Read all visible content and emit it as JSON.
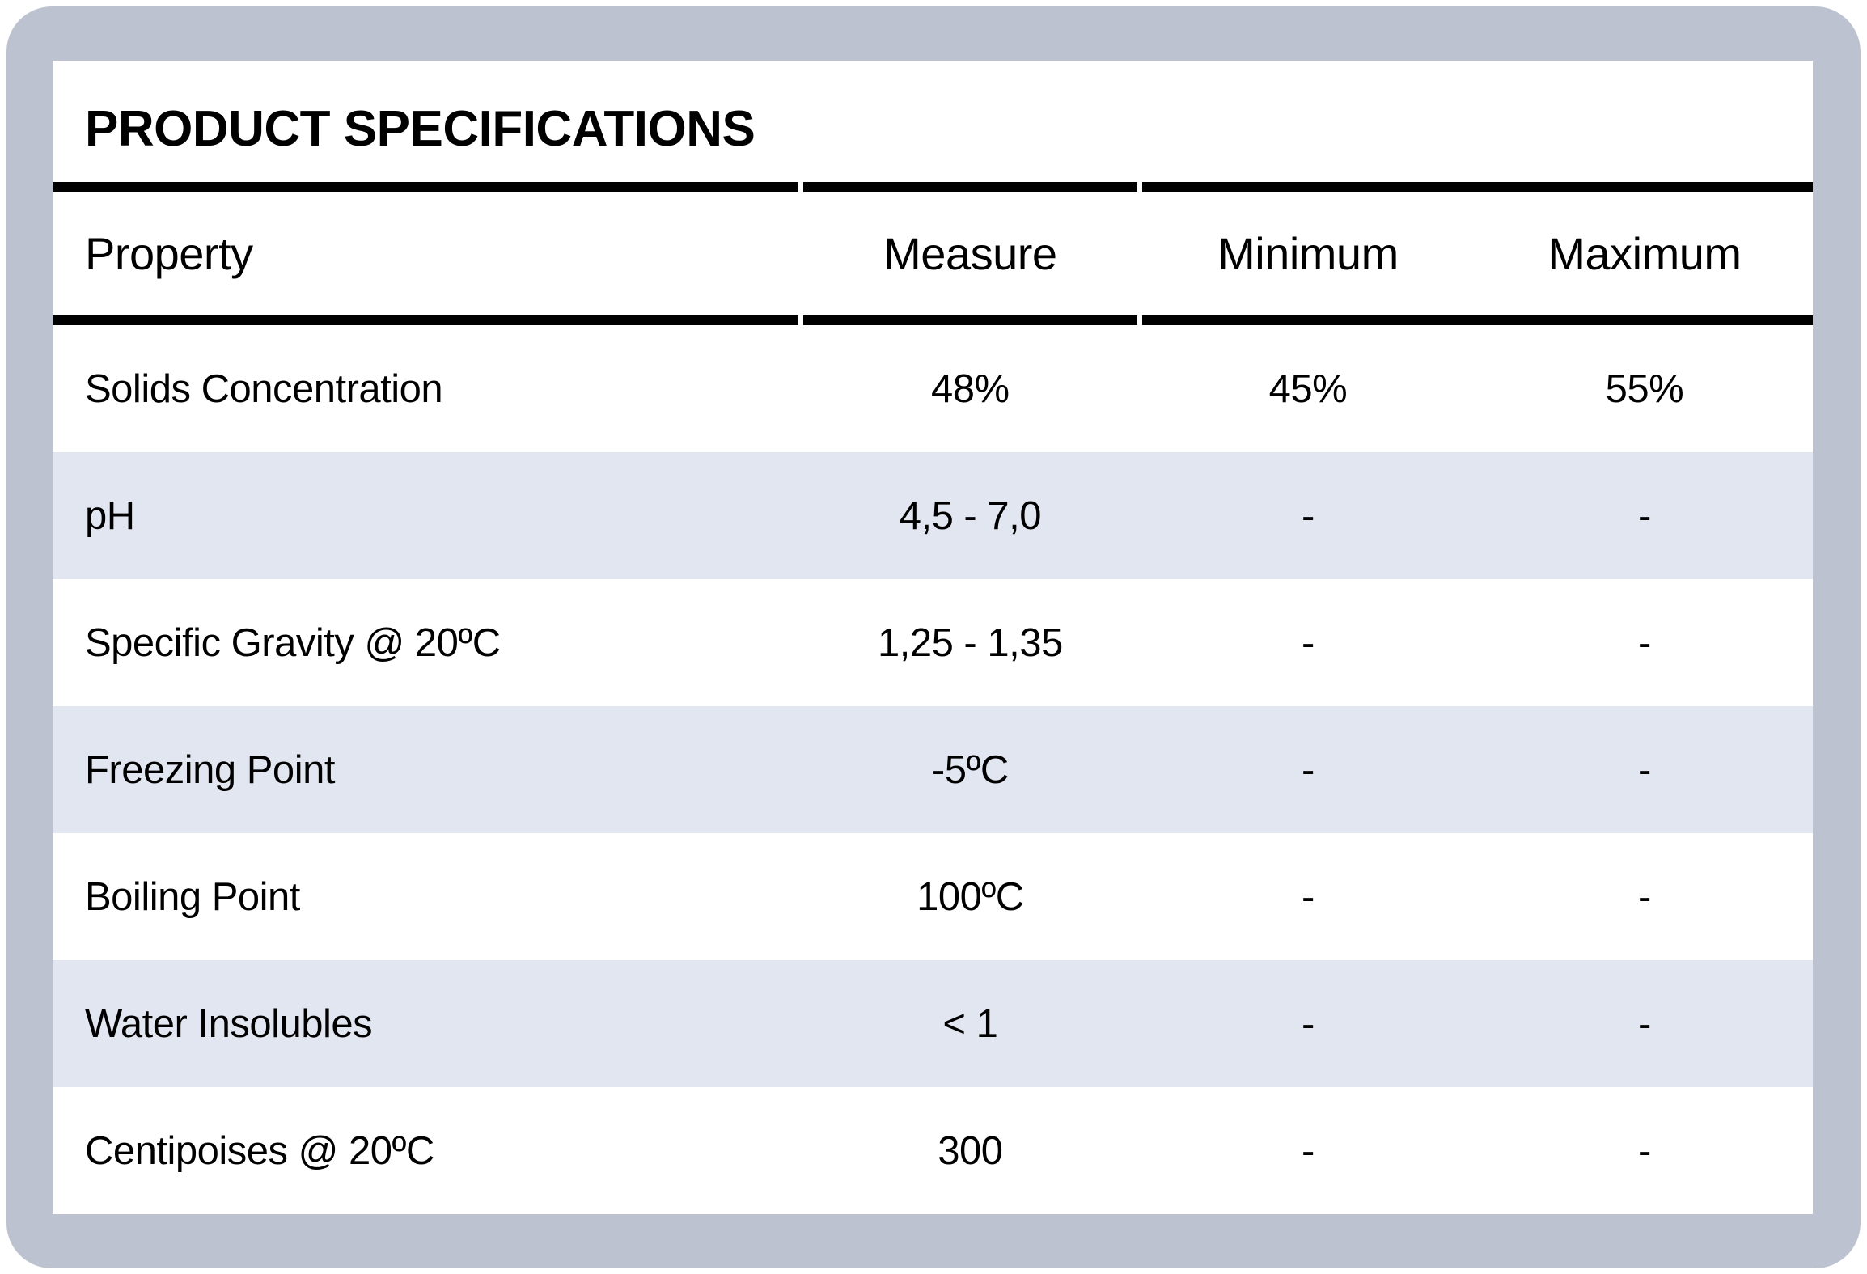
{
  "table": {
    "title": "PRODUCT SPECIFICATIONS",
    "columns": [
      "Property",
      "Measure",
      "Minimum",
      "Maximum"
    ],
    "rows": [
      {
        "property": "Solids Concentration",
        "measure": "48%",
        "minimum": "45%",
        "maximum": "55%"
      },
      {
        "property": "pH",
        "measure": "4,5 - 7,0",
        "minimum": "-",
        "maximum": "-"
      },
      {
        "property": "Specific Gravity @ 20ºC",
        "measure": "1,25 - 1,35",
        "minimum": "-",
        "maximum": "-"
      },
      {
        "property": "Freezing Point",
        "measure": "-5ºC",
        "minimum": "-",
        "maximum": "-"
      },
      {
        "property": "Boiling Point",
        "measure": "100ºC",
        "minimum": "-",
        "maximum": "-"
      },
      {
        "property": "Water Insolubles",
        "measure": "< 1",
        "minimum": "-",
        "maximum": "-"
      },
      {
        "property": "Centipoises @ 20ºC",
        "measure": "300",
        "minimum": "-",
        "maximum": "-"
      }
    ]
  },
  "colors": {
    "panel_background": "#bcc2cf",
    "card_background": "#ffffff",
    "alt_row_background": "#e2e6f0",
    "rule": "#000000",
    "text": "#000000"
  }
}
